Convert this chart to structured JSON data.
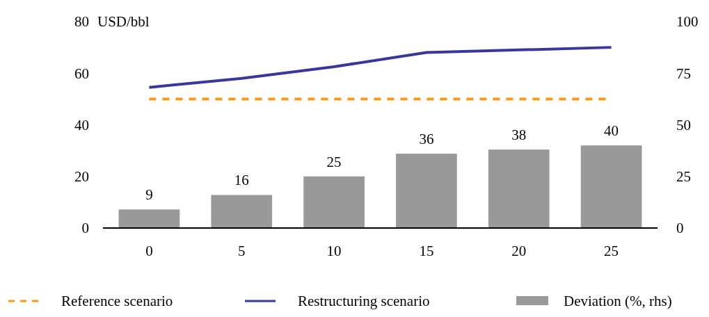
{
  "chart_data": {
    "type": "bar",
    "ylabel": "USD/bbl",
    "categories": [
      "0",
      "5",
      "10",
      "15",
      "20",
      "25"
    ],
    "series": [
      {
        "name": "Reference scenario",
        "type": "line",
        "line_style": "dashed",
        "color": "#f59a1b",
        "values": [
          50,
          50,
          50,
          50,
          50,
          50
        ]
      },
      {
        "name": "Restructuring scenario",
        "type": "line",
        "line_style": "solid",
        "color": "#38389c",
        "values": [
          54.5,
          58,
          62.5,
          68,
          69,
          70
        ]
      },
      {
        "name": "Deviation (%, rhs)",
        "axis": "y2",
        "color": "#999999",
        "values": [
          9,
          16,
          25,
          36,
          38,
          40
        ],
        "value_labels": [
          "9",
          "16",
          "25",
          "36",
          "38",
          "40"
        ]
      }
    ],
    "ylim": [
      0,
      80
    ],
    "yticks": [
      0,
      20,
      40,
      60,
      80
    ],
    "y2lim": [
      0,
      100
    ],
    "y2ticks": [
      0,
      25,
      50,
      75,
      100
    ],
    "legend": "bottom"
  }
}
